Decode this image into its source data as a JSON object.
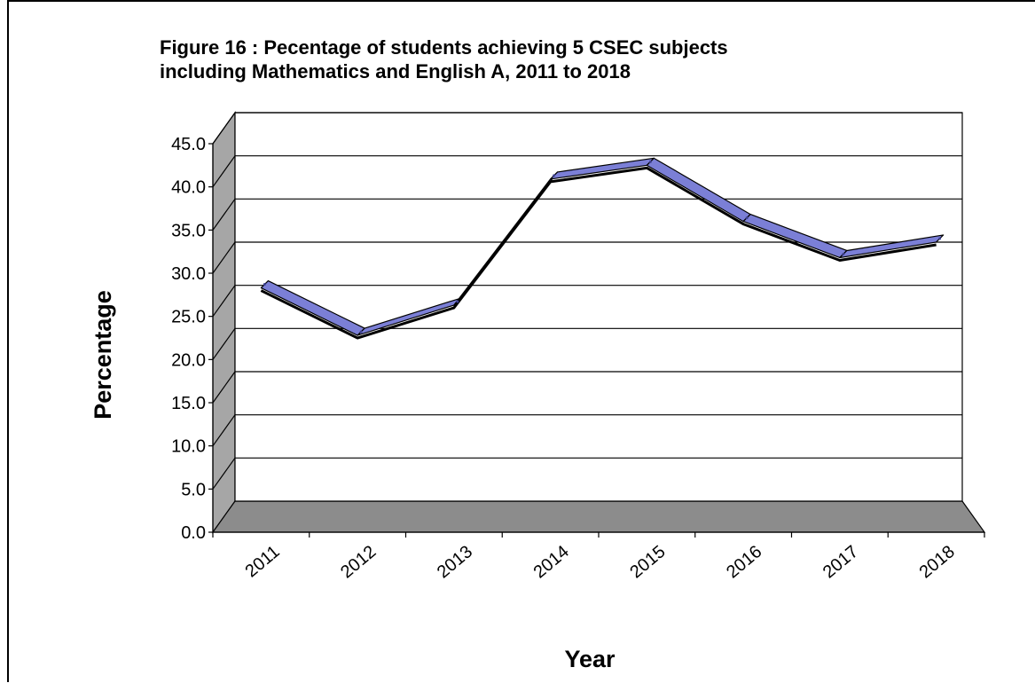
{
  "chart_data": {
    "type": "line",
    "title": "Figure 16 : Pecentage of students achieving 5 CSEC subjects\nincluding Mathematics and English A, 2011 to 2018",
    "xlabel": "Year",
    "ylabel": "Percentage",
    "categories": [
      "2011",
      "2012",
      "2013",
      "2014",
      "2015",
      "2016",
      "2017",
      "2018"
    ],
    "series": [
      {
        "values": [
          28.3,
          22.8,
          26.3,
          40.9,
          42.5,
          36.0,
          31.8,
          33.6
        ]
      }
    ],
    "ylim": [
      0,
      45
    ],
    "yticks": [
      "0.0",
      "5.0",
      "10.0",
      "15.0",
      "20.0",
      "25.0",
      "30.0",
      "35.0",
      "40.0",
      "45.0"
    ],
    "grid": true,
    "legend": "none",
    "style": "3d",
    "colors": {
      "line": "#7b7fd6",
      "line_dark": "#3e4190",
      "floor": "#8c8c8c",
      "wall": "#a6a6a6"
    }
  }
}
